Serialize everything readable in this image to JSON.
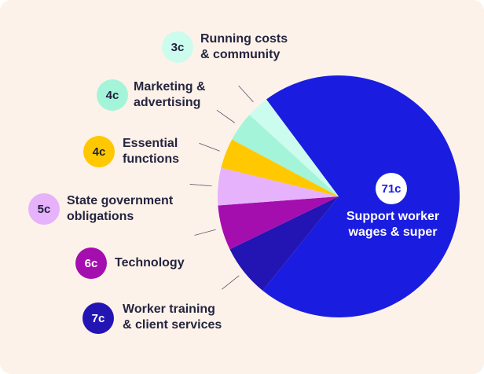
{
  "chart_data": {
    "type": "pie",
    "unit": "c",
    "slices": [
      {
        "label": "Support worker\nwages & super",
        "value": 71,
        "value_label": "71c",
        "color": "#1a1de0"
      },
      {
        "label": "Worker training\n& client services",
        "value": 7,
        "value_label": "7c",
        "color": "#2314b4"
      },
      {
        "label": "Technology",
        "value": 6,
        "value_label": "6c",
        "color": "#a40eae"
      },
      {
        "label": "State government\nobligations",
        "value": 5,
        "value_label": "5c",
        "color": "#e6b2fc"
      },
      {
        "label": "Essential\nfunctions",
        "value": 4,
        "value_label": "4c",
        "color": "#ffc800"
      },
      {
        "label": "Marketing &\nadvertising",
        "value": 4,
        "value_label": "4c",
        "color": "#a4f4da"
      },
      {
        "label": "Running costs\n& community",
        "value": 3,
        "value_label": "3c",
        "color": "#ccfced"
      }
    ],
    "background": "#fdf2e9"
  }
}
